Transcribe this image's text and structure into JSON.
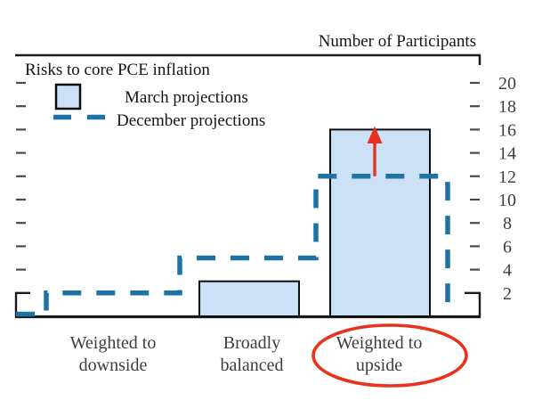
{
  "figure": {
    "axis_title": "Number of Participants",
    "title": "Risks to core PCE inflation"
  },
  "legend": {
    "march_label": "March projections",
    "december_label": "December projections"
  },
  "colors": {
    "bar_fill": "#cde1f6",
    "bar_border": "#0d0d0d",
    "december_line": "#1f72a4",
    "highlight_red": "#e8321e",
    "axis_black": "#1a1a1a",
    "tick_gray": "#4a4a4a",
    "number_gray": "#3d3d3d",
    "label_gray": "#3d3d3d",
    "text_black": "#141414"
  },
  "chart_data": {
    "type": "bar",
    "title": "Risks to core PCE inflation",
    "axis_title": "Number of Participants",
    "categories": [
      "Weighted to downside",
      "Broadly balanced",
      "Weighted to upside"
    ],
    "category_label_lines": [
      [
        "Weighted to",
        "downside"
      ],
      [
        "Broadly",
        "balanced"
      ],
      [
        "Weighted to",
        "upside"
      ]
    ],
    "series": [
      {
        "name": "March projections",
        "style": "bar",
        "values": [
          0,
          3,
          16
        ]
      },
      {
        "name": "December projections",
        "style": "dashed-step-line",
        "values": [
          2,
          5,
          12
        ]
      }
    ],
    "ylabel": "Number of Participants",
    "ylim": [
      0,
      21
    ],
    "yticks": [
      2,
      4,
      6,
      8,
      10,
      12,
      14,
      16,
      18,
      20
    ],
    "grid": "off",
    "legend_position": "top-left",
    "annotations": [
      {
        "type": "up-arrow",
        "category": "Weighted to upside",
        "from_value": 12,
        "to_value": 16,
        "color": "#e8321e"
      },
      {
        "type": "ellipse-highlight",
        "target": "x-axis label: Weighted to upside",
        "color": "#e8321e"
      }
    ]
  }
}
